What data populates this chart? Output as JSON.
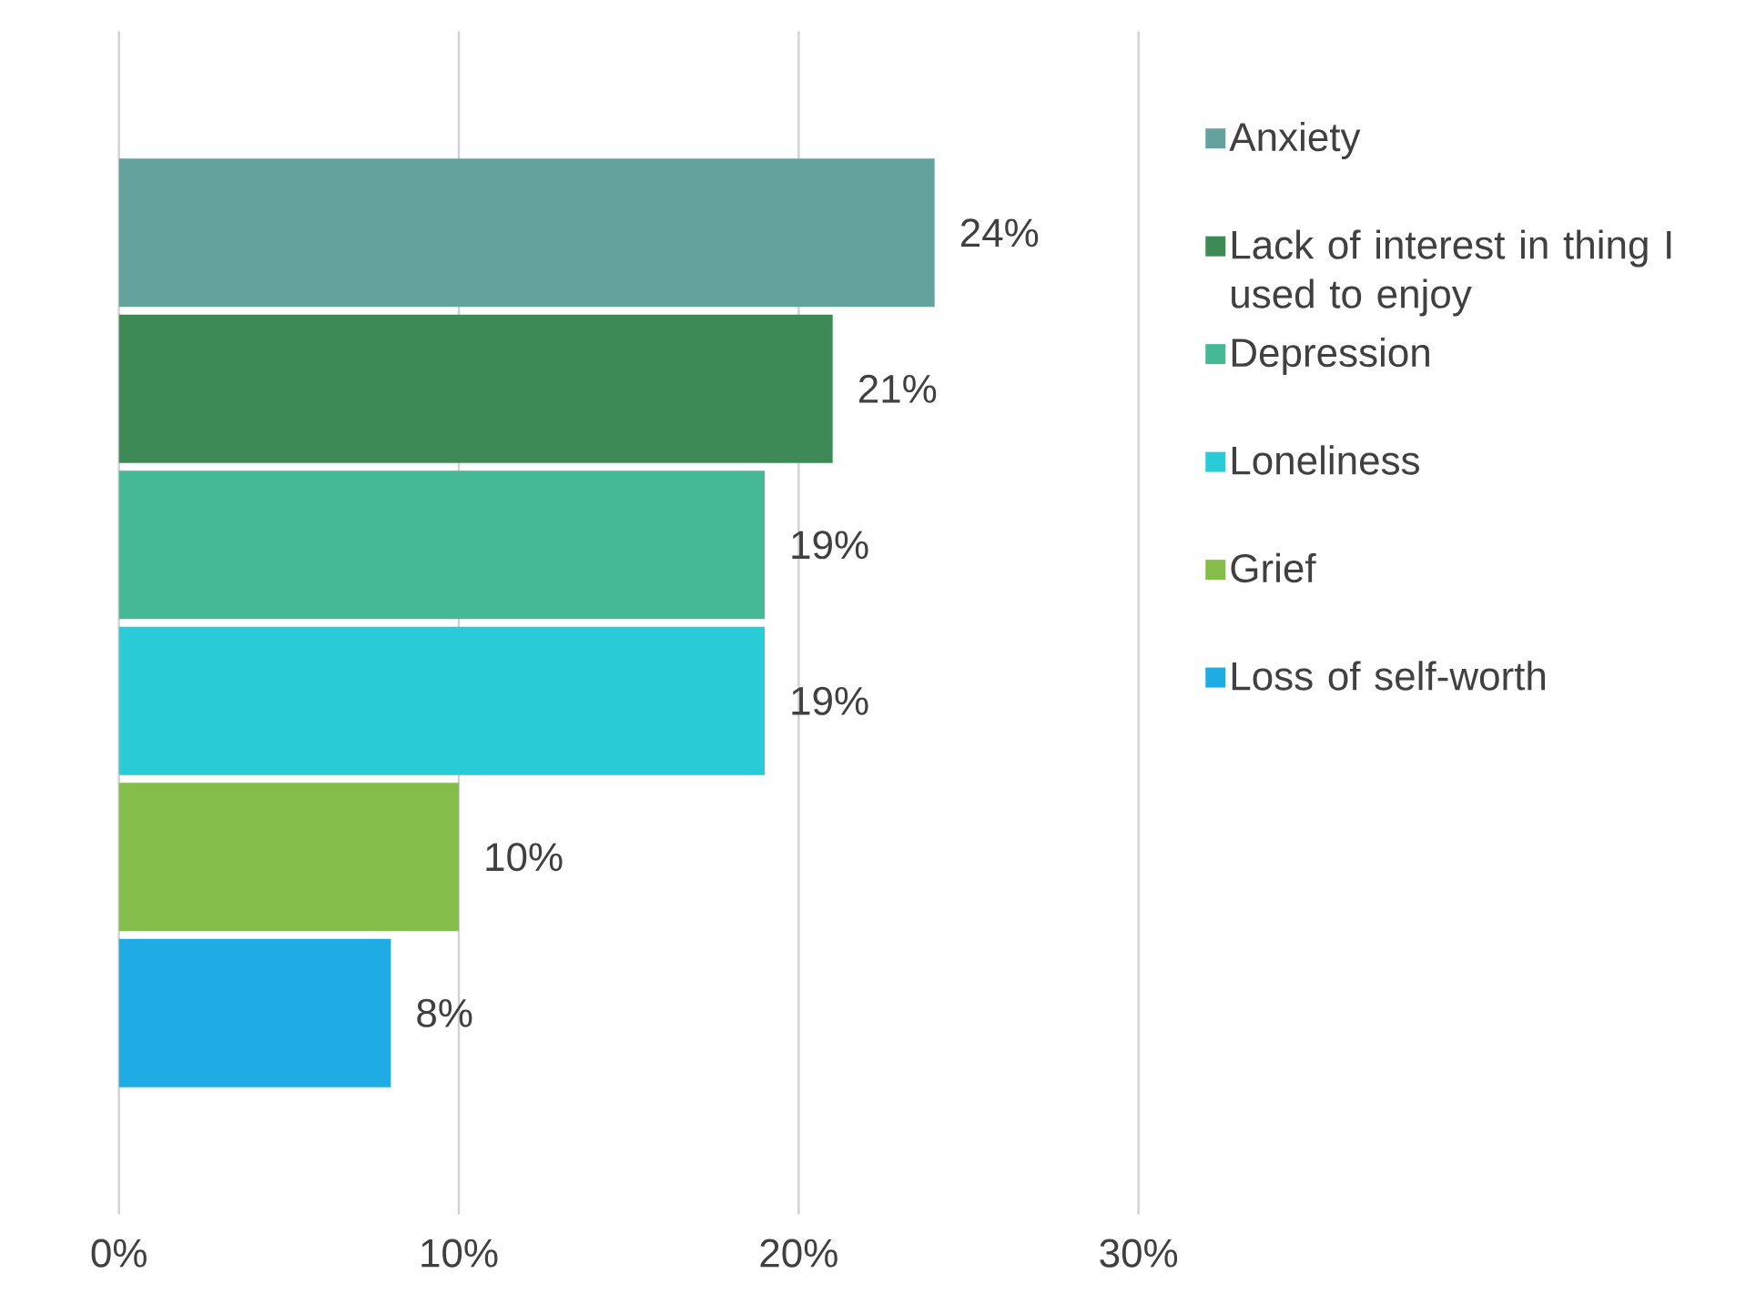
{
  "chart_data": {
    "type": "bar",
    "orientation": "horizontal",
    "categories": [
      null
    ],
    "series": [
      {
        "name": "Anxiety",
        "color": "#64a39d",
        "values": [
          24
        ],
        "value_labels": [
          "24%"
        ]
      },
      {
        "name": "Lack of interest in thing I used to enjoy",
        "color": "#3d8a56",
        "values": [
          21
        ],
        "value_labels": [
          "21%"
        ]
      },
      {
        "name": "Depression",
        "color": "#44b994",
        "values": [
          19
        ],
        "value_labels": [
          "19%"
        ]
      },
      {
        "name": "Loneliness",
        "color": "#29ccd6",
        "values": [
          19
        ],
        "value_labels": [
          "19%"
        ]
      },
      {
        "name": "Grief",
        "color": "#84bd4a",
        "values": [
          10
        ],
        "value_labels": [
          "10%"
        ]
      },
      {
        "name": "Loss of self-worth",
        "color": "#1fabe3",
        "values": [
          8
        ],
        "value_labels": [
          "8%"
        ]
      }
    ],
    "xlim": [
      0,
      30
    ],
    "xticks": [
      {
        "value": 0,
        "label": "0%"
      },
      {
        "value": 10,
        "label": "10%"
      },
      {
        "value": 20,
        "label": "20%"
      },
      {
        "value": 30,
        "label": "30%"
      }
    ],
    "grid": "x",
    "legend": "right"
  }
}
